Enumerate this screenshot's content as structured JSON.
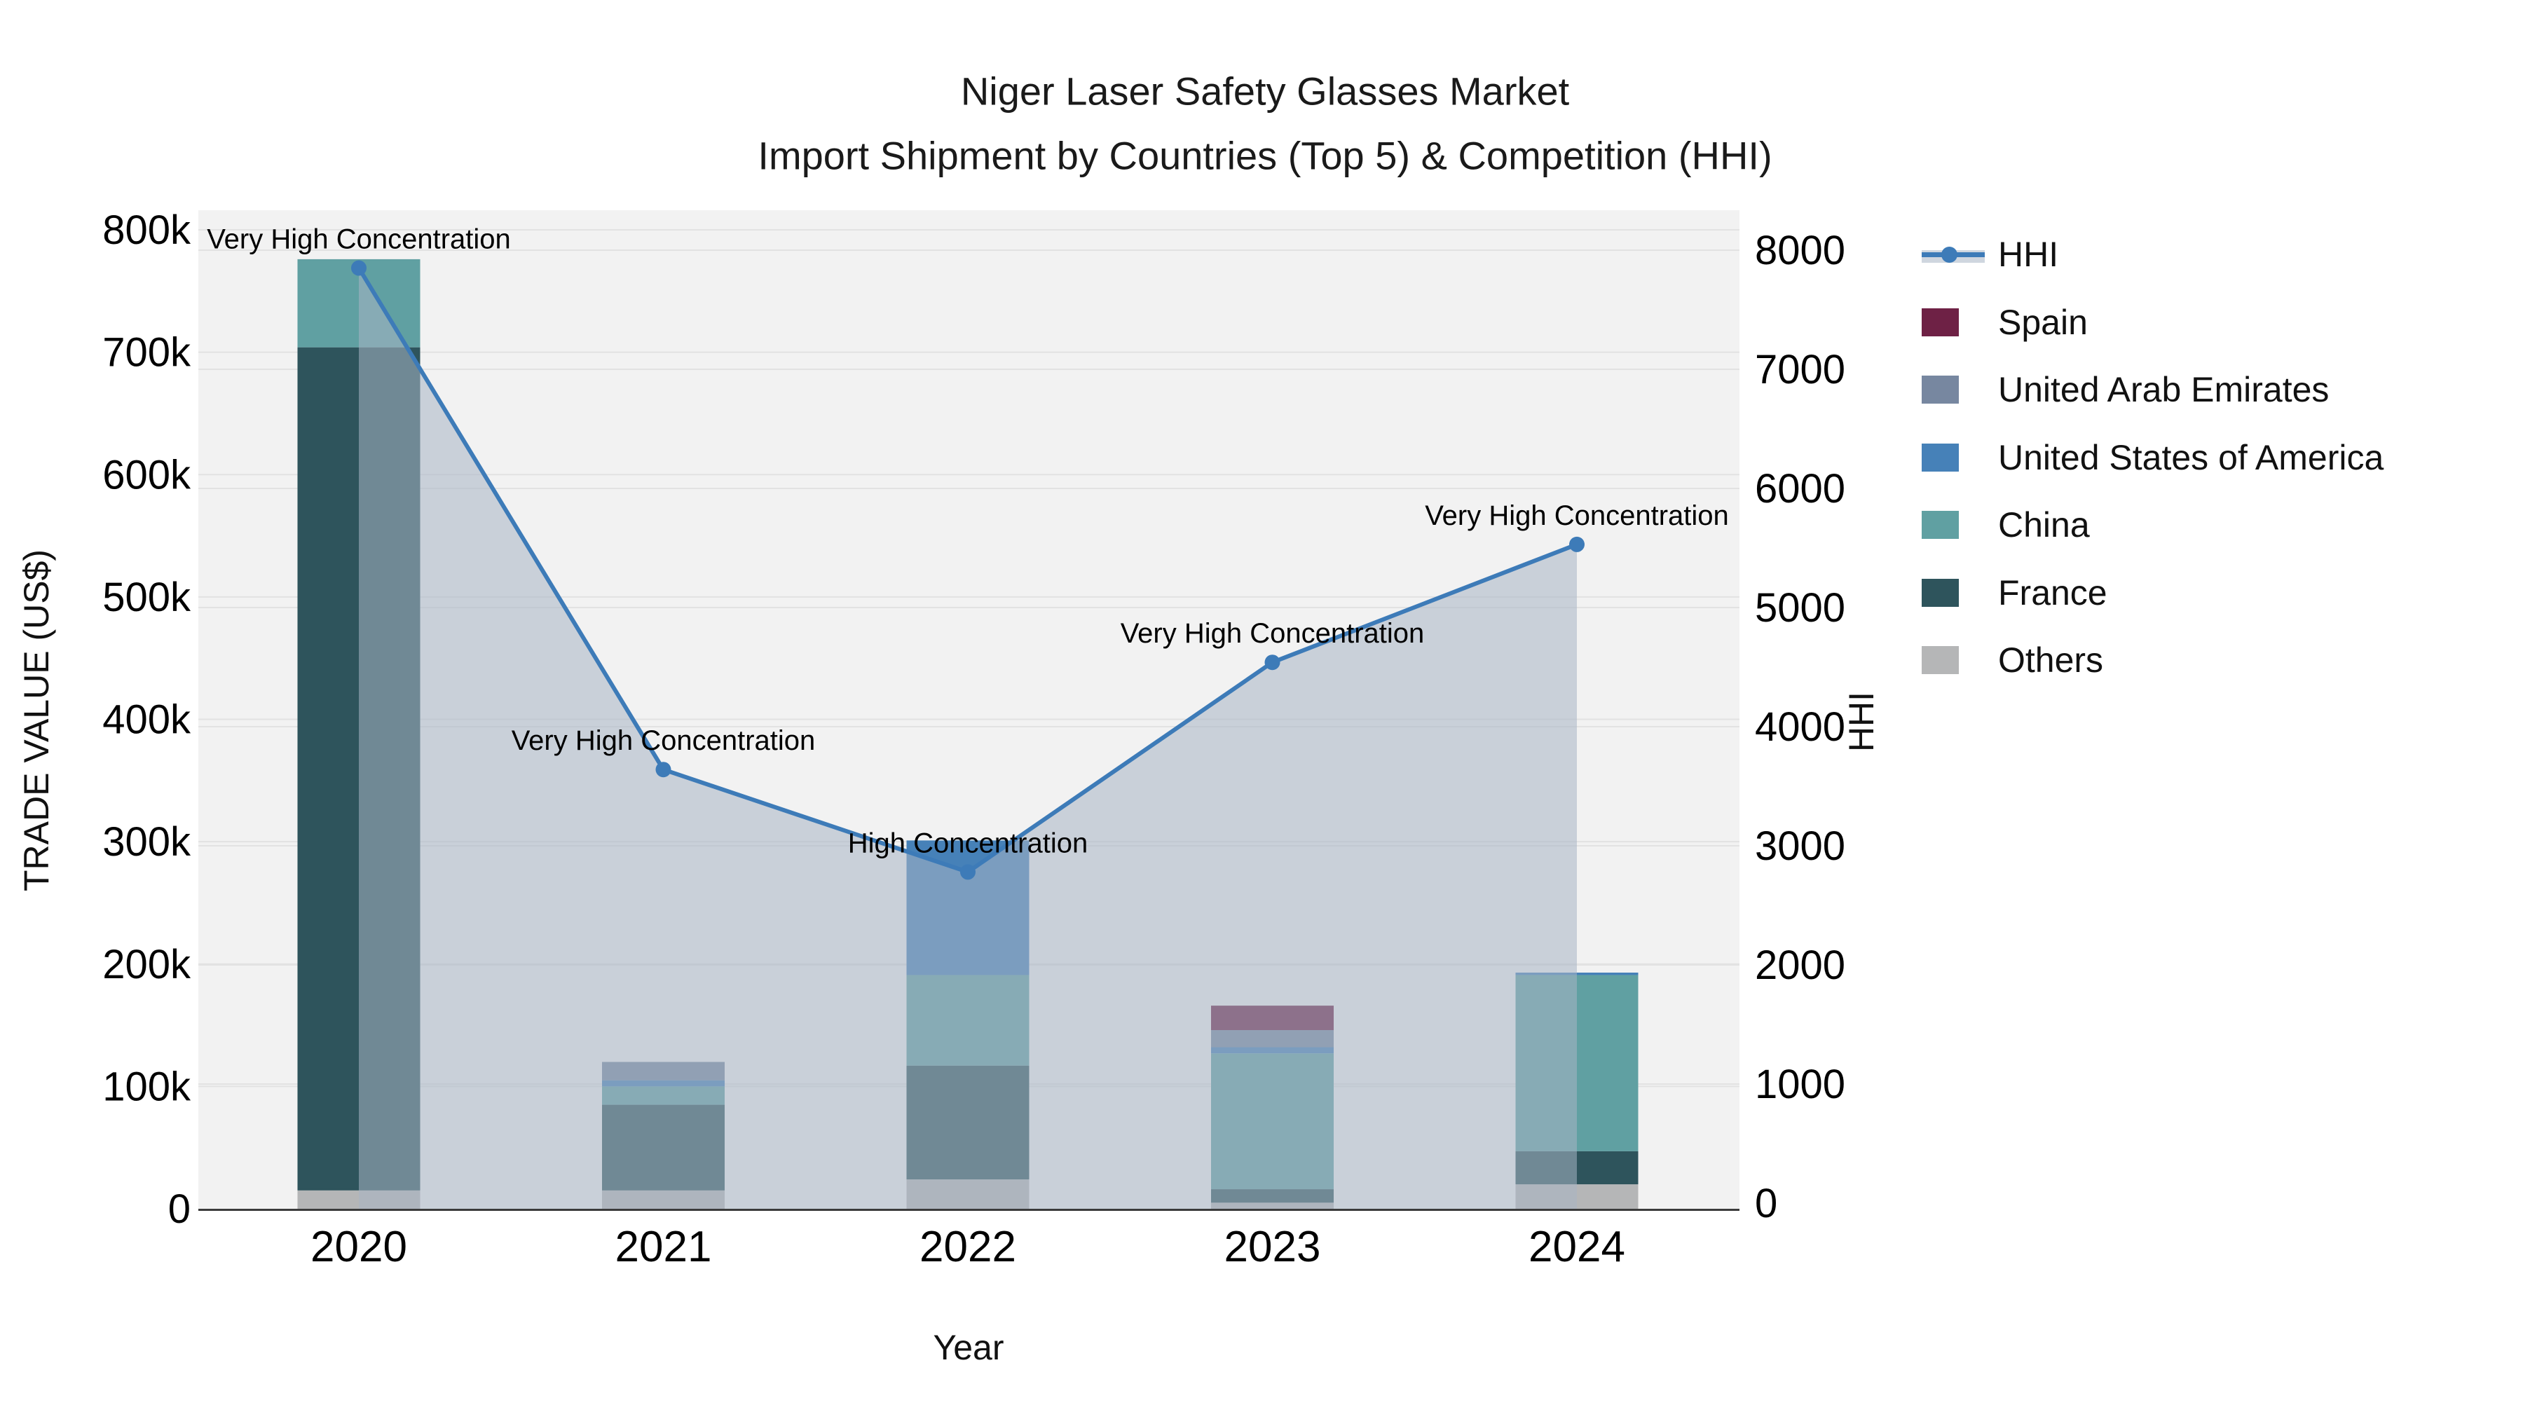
{
  "title": {
    "line1": "Niger Laser Safety Glasses Market",
    "line2": "Import Shipment by Countries (Top 5) & Competition (HHI)"
  },
  "axes": {
    "x": {
      "title": "Year",
      "tick_labels": [
        "2020",
        "2021",
        "2022",
        "2023",
        "2024"
      ]
    },
    "y_left": {
      "title": "TRADE VALUE (US$)",
      "tick_labels": [
        "0",
        "100k",
        "200k",
        "300k",
        "400k",
        "500k",
        "600k",
        "700k",
        "800k"
      ]
    },
    "y_right": {
      "title": "HHI",
      "tick_labels": [
        "0",
        "1000",
        "2000",
        "3000",
        "4000",
        "5000",
        "6000",
        "7000",
        "8000"
      ]
    }
  },
  "legend": {
    "items": [
      {
        "label": "HHI",
        "kind": "line",
        "color": "#3d7bb8"
      },
      {
        "label": "Spain",
        "kind": "patch",
        "color": "#6e2145"
      },
      {
        "label": "United Arab Emirates",
        "kind": "patch",
        "color": "#7787a0"
      },
      {
        "label": "United States of America",
        "kind": "patch",
        "color": "#4681b8"
      },
      {
        "label": "China",
        "kind": "patch",
        "color": "#60a0a2"
      },
      {
        "label": "France",
        "kind": "patch",
        "color": "#2e545c"
      },
      {
        "label": "Others",
        "kind": "patch",
        "color": "#b5b6b7"
      }
    ]
  },
  "chart_data": {
    "type": "bar+line",
    "title": "Niger Laser Safety Glasses Market — Import Shipment by Countries (Top 5) & Competition (HHI)",
    "categories": [
      "2020",
      "2021",
      "2022",
      "2023",
      "2024"
    ],
    "xlabel": "Year",
    "ylabel_left": "TRADE VALUE (US$)",
    "ylabel_right": "HHI",
    "ylim_left": [
      0,
      800000
    ],
    "ylim_right": [
      0,
      8000
    ],
    "grid": true,
    "legend_position": "right",
    "stack_order_bottom_to_top": [
      "Others",
      "France",
      "China",
      "United States of America",
      "United Arab Emirates",
      "Spain"
    ],
    "series": [
      {
        "name": "Others",
        "color": "#b5b6b7",
        "values": [
          15000,
          15000,
          24000,
          5000,
          20000
        ]
      },
      {
        "name": "France",
        "color": "#2e545c",
        "values": [
          689000,
          70000,
          93000,
          11000,
          27000
        ]
      },
      {
        "name": "China",
        "color": "#60a0a2",
        "values": [
          72000,
          15000,
          74000,
          111000,
          144000
        ]
      },
      {
        "name": "United States of America",
        "color": "#4681b8",
        "values": [
          0,
          5000,
          110000,
          5000,
          2000
        ]
      },
      {
        "name": "United Arab Emirates",
        "color": "#7787a0",
        "values": [
          0,
          15000,
          0,
          14000,
          0
        ]
      },
      {
        "name": "Spain",
        "color": "#6e2145",
        "values": [
          0,
          0,
          0,
          20000,
          0
        ]
      }
    ],
    "bar_totals": [
      776000,
      120000,
      301000,
      166000,
      193000
    ],
    "line_series": {
      "name": "HHI",
      "color": "#3d7bb8",
      "axis": "right",
      "values": [
        7850,
        3640,
        2780,
        4540,
        5530
      ],
      "area_fill": "rgba(168,180,197,0.55)"
    },
    "annotations": [
      {
        "x": "2020",
        "text": "Very High Concentration"
      },
      {
        "x": "2021",
        "text": "Very High Concentration"
      },
      {
        "x": "2022",
        "text": "High Concentration"
      },
      {
        "x": "2023",
        "text": "Very High Concentration"
      },
      {
        "x": "2024",
        "text": "Very High Concentration"
      }
    ]
  },
  "style": {
    "plot_bg": "#f2f2f2",
    "gridline": "#e2e2e2",
    "baseline": "#3b3b3b",
    "text": "#111111"
  }
}
